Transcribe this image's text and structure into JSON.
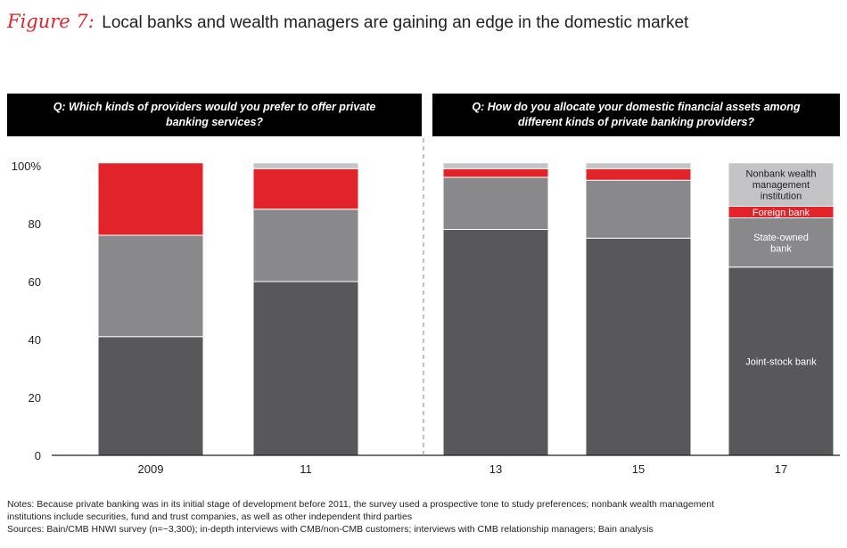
{
  "figure": {
    "label": "Figure 7:",
    "title": "Local banks and wealth managers are gaining an edge in the domestic market"
  },
  "questions": {
    "left": "Q: Which kinds of providers would you prefer to offer private banking services?",
    "right": "Q: How do you allocate your domestic financial assets among different kinds of private banking providers?"
  },
  "chart_data": {
    "type": "bar",
    "stacked": true,
    "categories": [
      "2009",
      "11",
      "13",
      "15",
      "17"
    ],
    "ylim": [
      0,
      100
    ],
    "yticks": [
      0,
      20,
      40,
      60,
      80,
      100
    ],
    "ytick_labels": [
      "0",
      "20",
      "40",
      "60",
      "80",
      "100%"
    ],
    "series": [
      {
        "name": "Joint-stock bank",
        "color": "#58585a",
        "values": [
          41,
          60,
          78,
          75,
          65
        ]
      },
      {
        "name": "State-owned bank",
        "color": "#89898b",
        "values": [
          35,
          25,
          18,
          20,
          17
        ]
      },
      {
        "name": "Foreign bank",
        "color": "#e2232a",
        "values": [
          25,
          14,
          3,
          4,
          4
        ]
      },
      {
        "name": "Nonbank wealth management institution",
        "color": "#c4c4c6",
        "values": [
          0,
          2,
          2,
          2,
          15
        ]
      }
    ],
    "labeled_category": "17",
    "divider_after": "11"
  },
  "notes": {
    "line1": "Notes: Because private banking was in its initial stage of development before 2011, the survey used a prospective tone to study preferences; nonbank wealth management",
    "line2": "institutions include securities, fund and trust companies, as well as other independent third parties",
    "line3": "Sources: Bain/CMB HNWI survey (n=~3,300); in-depth interviews with CMB/non-CMB customers; interviews with CMB relationship managers; Bain analysis"
  }
}
